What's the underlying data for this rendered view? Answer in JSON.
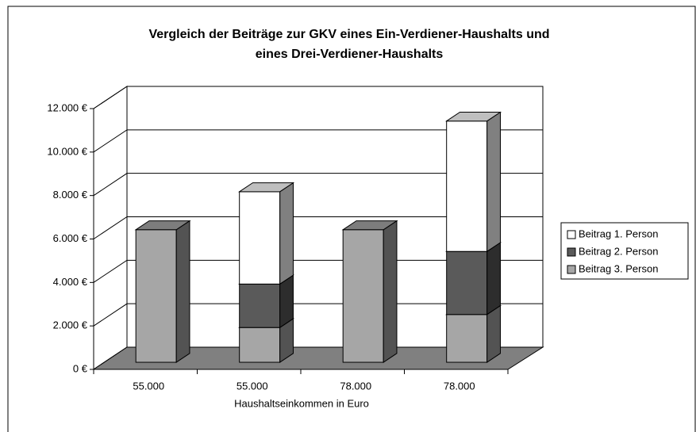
{
  "chart_data": {
    "type": "bar3d_stacked",
    "title": "Vergleich der Beiträge zur GKV eines Ein-Verdiener-Haushalts und",
    "title_line2": "eines Drei-Verdiener-Haushalts",
    "x_label": "Haushaltseinkommen in Euro",
    "categories": [
      "55.000",
      "55.000",
      "78.000",
      "78.000"
    ],
    "series": [
      {
        "name": "Beitrag 3. Person",
        "color": "#a6a6a6",
        "values": [
          6100,
          1600,
          6100,
          2200
        ]
      },
      {
        "name": "Beitrag 2. Person",
        "color": "#5a5a5a",
        "values": [
          0,
          2000,
          0,
          2900
        ]
      },
      {
        "name": "Beitrag 1. Person",
        "color": "#ffffff",
        "values": [
          0,
          4250,
          0,
          6000
        ]
      }
    ],
    "legend_order": [
      2,
      1,
      0
    ],
    "ylim": [
      0,
      12000
    ],
    "yticks": [
      {
        "value": 0,
        "label": "0 €"
      },
      {
        "value": 2000,
        "label": "2.000 €"
      },
      {
        "value": 4000,
        "label": "4.000 €"
      },
      {
        "value": 6000,
        "label": "6.000 €"
      },
      {
        "value": 8000,
        "label": "8.000 €"
      },
      {
        "value": 10000,
        "label": "10.000 €"
      },
      {
        "value": 12000,
        "label": "12.000 €"
      }
    ],
    "grid": true,
    "legend": "right"
  }
}
